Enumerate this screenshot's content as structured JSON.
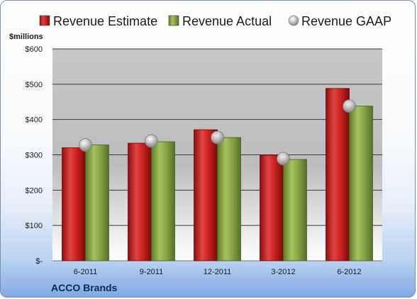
{
  "company": "ACCO Brands",
  "chart_data": {
    "type": "bar",
    "unit_label": "$millions",
    "categories": [
      "6-2011",
      "9-2011",
      "12-2011",
      "3-2012",
      "6-2012"
    ],
    "series": [
      {
        "name": "Revenue Estimate",
        "kind": "bar",
        "color": "#d42a2a",
        "values": [
          320,
          333,
          371,
          299,
          488
        ]
      },
      {
        "name": "Revenue Actual",
        "kind": "bar",
        "color": "#8fb04a",
        "values": [
          328,
          337,
          349,
          287,
          438
        ]
      },
      {
        "name": "Revenue GAAP",
        "kind": "marker",
        "color": "#b8b8b8",
        "values": [
          328,
          339,
          349,
          289,
          438
        ]
      }
    ],
    "yticks": [
      0,
      100,
      200,
      300,
      400,
      500,
      600
    ],
    "ytick_labels": [
      "$-",
      "$100",
      "$200",
      "$300",
      "$400",
      "$500",
      "$600"
    ],
    "ylim": [
      0,
      600
    ],
    "grid": true,
    "legend_position": "top"
  }
}
